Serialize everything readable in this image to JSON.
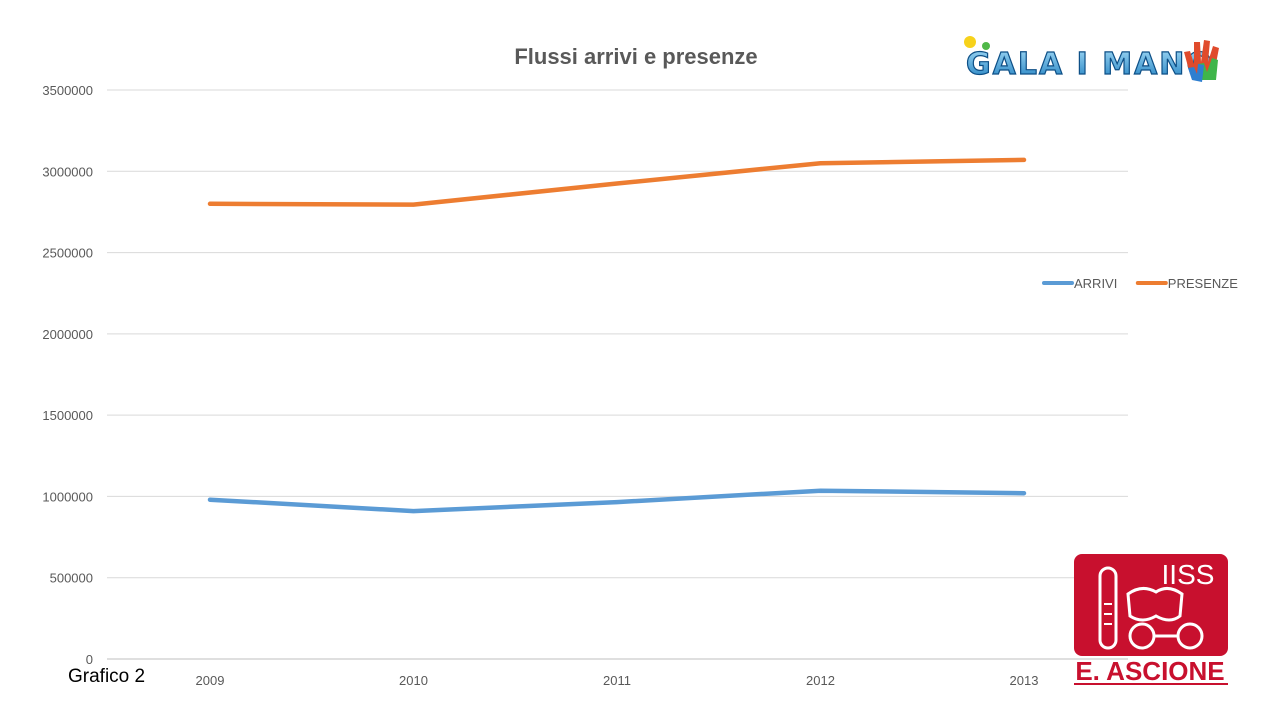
{
  "chart_data": {
    "type": "line",
    "title": "Flussi arrivi e presenze",
    "xlabel": "",
    "ylabel": "",
    "categories": [
      "2009",
      "2010",
      "2011",
      "2012",
      "2013"
    ],
    "ylim": [
      0,
      3500000
    ],
    "yticks": [
      0,
      500000,
      1000000,
      1500000,
      2000000,
      2500000,
      3000000,
      3500000
    ],
    "grid": true,
    "legend": "right",
    "series": [
      {
        "name": "ARRIVI",
        "color": "#5b9bd5",
        "values": [
          980000,
          910000,
          965000,
          1035000,
          1020000
        ]
      },
      {
        "name": "PRESENZE",
        "color": "#ed7d31",
        "values": [
          2800000,
          2795000,
          2925000,
          3050000,
          3070000
        ]
      }
    ]
  },
  "caption": "Grafico 2",
  "logos": {
    "top": {
      "text": "GALA I MANO",
      "icon": "hands-logo-icon"
    },
    "bottom": {
      "line1": "IISS",
      "line2": "E. ASCIONE",
      "icon": "school-crest-icon",
      "color": "#c8102e"
    }
  }
}
